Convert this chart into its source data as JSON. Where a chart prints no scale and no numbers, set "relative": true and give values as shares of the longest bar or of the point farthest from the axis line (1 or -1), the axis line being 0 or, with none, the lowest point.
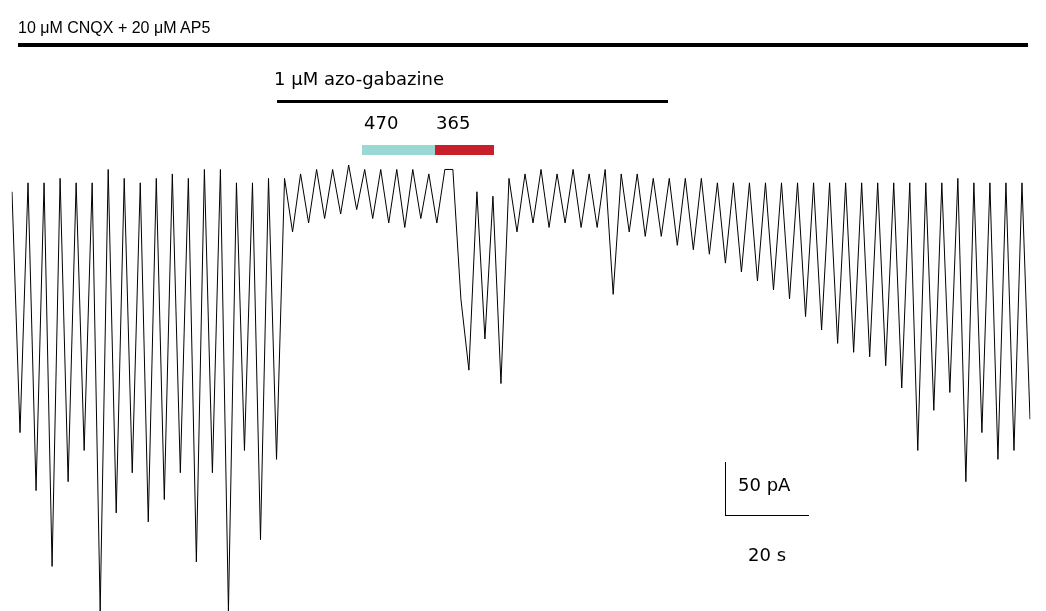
{
  "chart_data": {
    "type": "line",
    "relative": true,
    "marker": "none",
    "line_style": "solid",
    "categories": [
      null,
      null,
      null,
      null,
      null,
      null,
      null,
      null,
      null,
      null,
      null,
      null,
      null,
      null,
      null,
      null,
      null,
      null,
      null,
      null,
      null,
      null,
      null,
      null,
      null,
      null,
      null,
      null,
      null,
      null,
      null,
      null,
      null,
      null,
      null,
      null,
      null,
      null,
      null,
      null,
      null,
      null,
      null,
      null,
      null,
      null,
      null,
      null,
      null,
      null,
      null,
      null,
      null,
      null,
      null,
      null,
      null,
      null,
      null,
      null,
      null,
      null,
      null,
      null,
      null,
      null,
      null,
      null,
      null,
      null,
      null,
      null,
      null,
      null,
      null,
      null,
      null,
      null,
      null,
      null,
      null,
      null,
      null,
      null,
      null,
      null,
      null,
      null,
      null,
      null,
      null,
      null,
      null,
      null,
      null,
      null,
      null,
      null,
      null,
      null,
      null,
      null,
      null,
      null,
      null,
      null,
      null,
      null,
      null,
      null,
      null,
      null,
      null,
      null,
      null,
      null,
      null,
      null,
      null,
      null,
      null,
      null,
      null,
      null,
      null,
      null,
      null,
      null
    ],
    "series": [
      {
        "color": "#000000",
        "values": [
          0.94,
          0.4,
          0.96,
          0.27,
          0.96,
          0.1,
          0.97,
          0.29,
          0.96,
          0.36,
          0.96,
          0,
          0.99,
          0.22,
          0.97,
          0.31,
          0.96,
          0.2,
          0.97,
          0.25,
          0.98,
          0.31,
          0.97,
          0.11,
          0.99,
          0.31,
          0.99,
          0,
          0.96,
          0.36,
          0.96,
          0.16,
          0.97,
          0.34,
          0.97,
          0.85,
          0.98,
          0.87,
          0.99,
          0.88,
          0.99,
          0.89,
          1.0,
          0.9,
          0.99,
          0.88,
          0.99,
          0.87,
          0.99,
          0.86,
          0.99,
          0.88,
          0.98,
          0.87,
          0.99,
          0.99,
          0.7,
          0.54,
          0.94,
          0.61,
          0.93,
          0.51,
          0.97,
          0.85,
          0.98,
          0.87,
          0.99,
          0.86,
          0.98,
          0.87,
          0.99,
          0.86,
          0.98,
          0.86,
          0.99,
          0.71,
          0.98,
          0.85,
          0.98,
          0.84,
          0.97,
          0.84,
          0.97,
          0.82,
          0.97,
          0.81,
          0.97,
          0.8,
          0.96,
          0.78,
          0.96,
          0.76,
          0.96,
          0.74,
          0.96,
          0.72,
          0.96,
          0.7,
          0.96,
          0.66,
          0.96,
          0.63,
          0.96,
          0.6,
          0.96,
          0.58,
          0.96,
          0.57,
          0.96,
          0.55,
          0.96,
          0.5,
          0.96,
          0.36,
          0.96,
          0.45,
          0.96,
          0.49,
          0.97,
          0.29,
          0.96,
          0.4,
          0.96,
          0.34,
          0.96,
          0.36,
          0.96,
          0.43
        ]
      }
    ],
    "annotations": [
      "10 μM CNQX + 20 μM AP5",
      "1 μM azo-gabazine",
      "470",
      "365",
      "50 pA",
      "20 s"
    ]
  }
}
